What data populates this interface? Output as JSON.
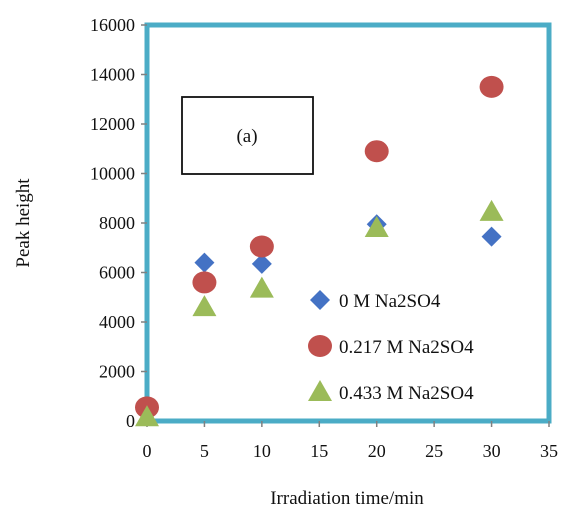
{
  "chart_data": {
    "type": "scatter",
    "title": "",
    "xlabel": "Irradiation time/min",
    "ylabel": "Peak height",
    "xlim": [
      0,
      35
    ],
    "ylim": [
      0,
      16000
    ],
    "xticks": [
      0,
      5,
      10,
      15,
      20,
      25,
      30,
      35
    ],
    "yticks": [
      0,
      2000,
      4000,
      6000,
      8000,
      10000,
      12000,
      14000,
      16000
    ],
    "grid": false,
    "legend_position": "inside lower-right",
    "annotation": "(a)",
    "series": [
      {
        "name": "0 M Na2SO4",
        "marker": "diamond",
        "color": "#4472C4",
        "points": [
          [
            5,
            6400
          ],
          [
            10,
            6350
          ],
          [
            20,
            7950
          ],
          [
            30,
            7450
          ]
        ]
      },
      {
        "name": "0.217 M Na2SO4",
        "marker": "circle",
        "color": "#C0504D",
        "points": [
          [
            0,
            550
          ],
          [
            5,
            5600
          ],
          [
            10,
            7050
          ],
          [
            20,
            10900
          ],
          [
            30,
            13500
          ]
        ]
      },
      {
        "name": "0.433 M Na2SO4",
        "marker": "triangle",
        "color": "#9BBB59",
        "points": [
          [
            0,
            150
          ],
          [
            5,
            4600
          ],
          [
            10,
            5350
          ],
          [
            20,
            7800
          ],
          [
            30,
            8450
          ]
        ]
      }
    ],
    "colors": {
      "plot_border": "#4BACC6",
      "axis": "#808080"
    }
  }
}
